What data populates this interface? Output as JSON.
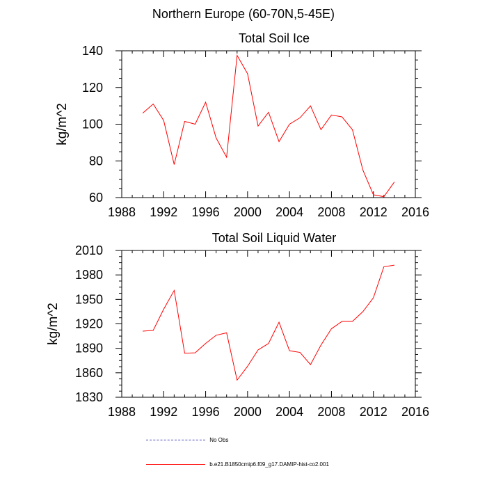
{
  "figure": {
    "suptitle": "Northern Europe (60-70N,5-45E)"
  },
  "legend": {
    "items": [
      {
        "label": "No Obs",
        "color": "#3b3bb5",
        "style": "dashed"
      },
      {
        "label": "b.e21.B1850cmip6.f09_g17.DAMIP-hist-co2.001",
        "color": "#ff0000",
        "style": "solid"
      }
    ]
  },
  "chart_data": [
    {
      "type": "line",
      "title": "Total Soil Ice",
      "xlabel": "",
      "ylabel": "kg/m^2",
      "xlim": [
        1988,
        2016
      ],
      "ylim": [
        60,
        140
      ],
      "xticks": [
        1988,
        1992,
        1996,
        2000,
        2004,
        2008,
        2012,
        2016
      ],
      "yticks": [
        60,
        80,
        100,
        120,
        140
      ],
      "x": [
        1990,
        1991,
        1992,
        1993,
        1994,
        1995,
        1996,
        1997,
        1998,
        1999,
        2000,
        2001,
        2002,
        2003,
        2004,
        2005,
        2006,
        2007,
        2008,
        2009,
        2010,
        2011,
        2012,
        2013,
        2014
      ],
      "series": [
        {
          "color": "#ff0000",
          "values": [
            106,
            111,
            102,
            78,
            101.5,
            100,
            112,
            92.5,
            82,
            137.5,
            127.5,
            99,
            106.5,
            90.5,
            100,
            103.5,
            110,
            97,
            105,
            104,
            97,
            75,
            61.5,
            60.5,
            68.5
          ]
        }
      ]
    },
    {
      "type": "line",
      "title": "Total Soil Liquid Water",
      "xlabel": "",
      "ylabel": "kg/m^2",
      "xlim": [
        1988,
        2016
      ],
      "ylim": [
        1830,
        2010
      ],
      "xticks": [
        1988,
        1992,
        1996,
        2000,
        2004,
        2008,
        2012,
        2016
      ],
      "yticks": [
        1830,
        1860,
        1890,
        1920,
        1950,
        1980,
        2010
      ],
      "x": [
        1990,
        1991,
        1992,
        1993,
        1994,
        1995,
        1996,
        1997,
        1998,
        1999,
        2000,
        2001,
        2002,
        2003,
        2004,
        2005,
        2006,
        2007,
        2008,
        2009,
        2010,
        2011,
        2012,
        2013,
        2014
      ],
      "series": [
        {
          "color": "#ff0000",
          "values": [
            1911,
            1912,
            1938,
            1961,
            1884,
            1884.5,
            1896,
            1906,
            1909,
            1851,
            1868,
            1888,
            1896,
            1922,
            1887,
            1885,
            1870,
            1894,
            1914,
            1923,
            1923,
            1935,
            1952,
            1990,
            1992
          ]
        }
      ]
    }
  ]
}
